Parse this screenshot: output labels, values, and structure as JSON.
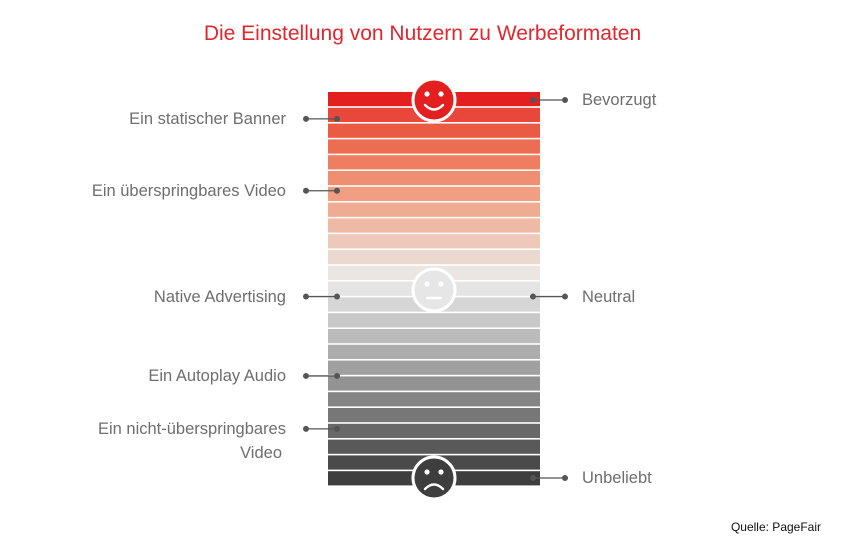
{
  "title": "Die Einstellung von Nutzern zu Werbeformaten",
  "colors": {
    "title": "#e3262d",
    "label_text": "#6e6e6e",
    "connector": "#555555",
    "stripes_top_to_bottom": [
      "#e3201f",
      "#e8473a",
      "#eb5b44",
      "#ed6d52",
      "#ef7e61",
      "#f08e71",
      "#f19e82",
      "#efac93",
      "#eebaa5",
      "#eec9b9",
      "#ebd9cf",
      "#ebe6e2",
      "#e4e4e4",
      "#d6d6d6",
      "#c8c8c8",
      "#bbbbbb",
      "#adadad",
      "#a0a0a0",
      "#939393",
      "#858585",
      "#777777",
      "#686868",
      "#595959",
      "#4a4a4a",
      "#3e3e3e"
    ]
  },
  "faces": {
    "top": "happy-face-icon",
    "middle": "neutral-face-icon",
    "bottom": "sad-face-icon"
  },
  "left_labels": [
    {
      "lines": [
        "Ein statischer Banner"
      ],
      "position": 0.05
    },
    {
      "lines": [
        "Ein überspringbares Video"
      ],
      "position": 0.24
    },
    {
      "lines": [
        "Native Advertising"
      ],
      "position": 0.52
    },
    {
      "lines": [
        "Ein Autoplay Audio"
      ],
      "position": 0.73
    },
    {
      "lines": [
        "Ein nicht-überspringbares",
        "Video"
      ],
      "position": 0.87
    }
  ],
  "right_labels": [
    {
      "text": "Bevorzugt",
      "position": 0.0
    },
    {
      "text": "Neutral",
      "position": 0.52
    },
    {
      "text": "Unbeliebt",
      "position": 1.0
    }
  ],
  "source": "Quelle: PageFair"
}
